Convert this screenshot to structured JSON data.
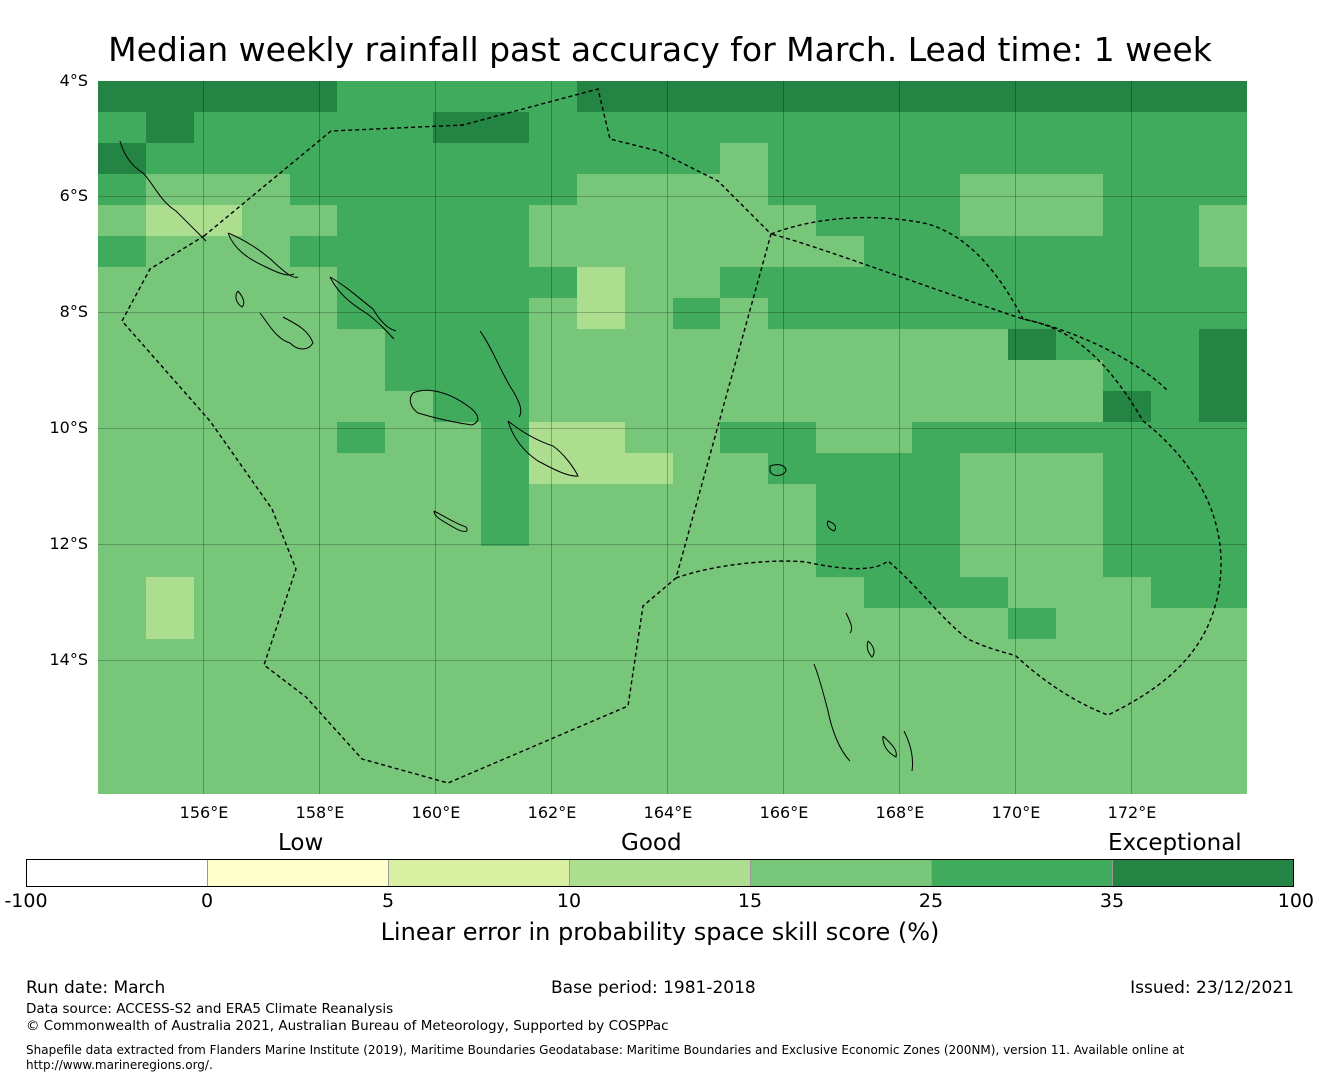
{
  "title": "Median weekly rainfall past accuracy for March. Lead time: 1 week",
  "map": {
    "lat_labels": [
      "4°S",
      "6°S",
      "8°S",
      "10°S",
      "12°S",
      "14°S"
    ],
    "lon_labels": [
      "156°E",
      "158°E",
      "160°E",
      "162°E",
      "164°E",
      "166°E",
      "168°E",
      "170°E",
      "172°E"
    ],
    "grid": [
      "666665555566666666666666",
      "565555566555555555555555",
      "655555555555545555555555",
      "544455555544445555444555",
      "433445555444444555444554",
      "544455555444444455555554",
      "444445555534455555555555",
      "444445555434545555555555",
      "444444555444444444465556",
      "444444555444444444444556",
      "444444455444444444444656",
      "444445445334455445555555",
      "444444445333445555444555",
      "444444445444444555444555",
      "444444445444444555444555",
      "444444444444444555444555",
      "434444444444444455544455",
      "434444444444444444454444",
      "444444444444444444444444",
      "444444444444444444444444",
      "444444444444444444444444",
      "444444444444444444444444",
      "444444444444444444444444"
    ]
  },
  "colorbar": {
    "category_labels": [
      "Low",
      "Good",
      "Exceptional"
    ],
    "ticks": [
      "-100",
      "0",
      "5",
      "10",
      "15",
      "25",
      "35",
      "100"
    ],
    "colors": [
      "#ffffff",
      "#ffffcc",
      "#d9f0a3",
      "#addd8e",
      "#78c679",
      "#41ab5d",
      "#238443"
    ],
    "label": "Linear error in probability space skill score (%)"
  },
  "footer": {
    "run_date": "Run date: March",
    "base_period": "Base period: 1981-2018",
    "issued": "Issued: 23/12/2021",
    "data_source": "Data source: ACCESS-S2 and ERA5 Climate Reanalysis",
    "copyright": "© Commonwealth of Australia 2021, Australian Bureau of Meteorology, Supported by COSPPac",
    "shapefile_line1": "Shapefile data extracted from Flanders Marine Institute (2019), Maritime Boundaries Geodatabase: Maritime Boundaries and Exclusive Economic Zones (200NM), version 11. Available online at",
    "shapefile_line2": "http://www.marineregions.org/."
  }
}
